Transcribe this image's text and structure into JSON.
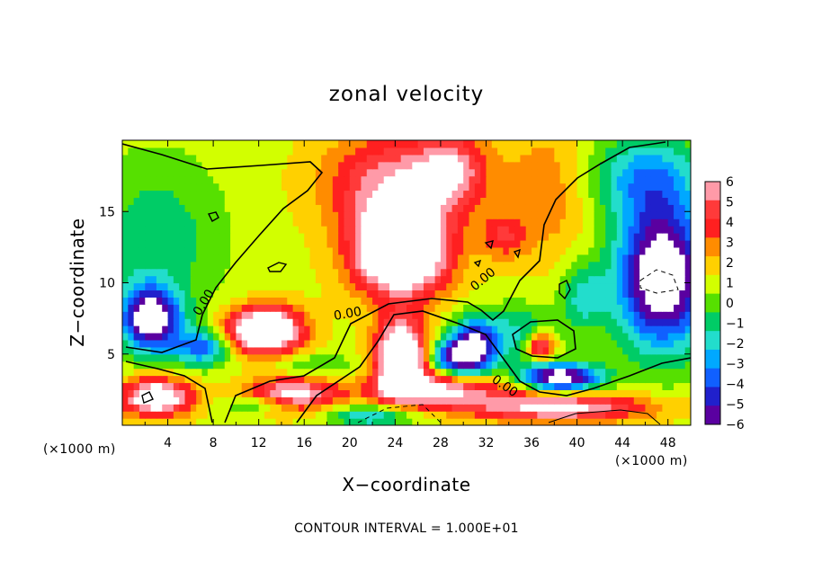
{
  "chart_data": {
    "type": "heatmap",
    "title": "zonal velocity",
    "xlabel": "X−coordinate",
    "ylabel": "Z−coordinate",
    "x_unit_label": "(×1000 m)",
    "z_unit_label": "(×1000 m)",
    "x_range": [
      0,
      50
    ],
    "z_range": [
      0,
      20
    ],
    "x_ticks": [
      4,
      8,
      12,
      16,
      20,
      24,
      28,
      32,
      36,
      40,
      44,
      48
    ],
    "x_tick_labels": [
      "4",
      "8",
      "12",
      "16",
      "20",
      "24",
      "28",
      "32",
      "36",
      "40",
      "44",
      "48"
    ],
    "z_ticks": [
      5,
      10,
      15
    ],
    "z_tick_labels": [
      "5",
      "10",
      "15"
    ],
    "colorbar": {
      "levels": [
        6,
        5,
        4,
        3,
        2,
        1,
        0,
        -1,
        -2,
        -3,
        -4,
        -5,
        -6
      ],
      "labels": [
        "6",
        "5",
        "4",
        "3",
        "2",
        "1",
        "0",
        "−1",
        "−2",
        "−3",
        "−4",
        "−5",
        "−6"
      ],
      "colors": [
        "#ff9aa8",
        "#ff3a3a",
        "#ff2020",
        "#ff8c00",
        "#ffd000",
        "#d2ff00",
        "#56e000",
        "#00cc66",
        "#22ddcc",
        "#00a8ff",
        "#1060ff",
        "#2020cc",
        "#5a00a0"
      ]
    },
    "contour_interval_label": "CONTOUR INTERVAL = 1.000E+01",
    "contour_labels": [
      "0.00",
      "0.00",
      "0.00",
      "0.00"
    ],
    "features": [
      {
        "x": 24.5,
        "z": 12.2,
        "sx": 4.0,
        "sz": 3.0,
        "amp": 11
      },
      {
        "x": 24.0,
        "z": 17.0,
        "sx": 6.0,
        "sz": 3.5,
        "amp": 5
      },
      {
        "x": 29.0,
        "z": 18.0,
        "sx": 3.0,
        "sz": 2.5,
        "amp": 4
      },
      {
        "x": 12.5,
        "z": 6.7,
        "sx": 3.2,
        "sz": 1.6,
        "amp": 10
      },
      {
        "x": 24.5,
        "z": 4.8,
        "sx": 2.2,
        "sz": 2.5,
        "amp": 10
      },
      {
        "x": 3.0,
        "z": 2.0,
        "sx": 3.0,
        "sz": 1.3,
        "amp": 8
      },
      {
        "x": 15.0,
        "z": 2.2,
        "sx": 4.0,
        "sz": 1.2,
        "amp": 6
      },
      {
        "x": 28.0,
        "z": 2.5,
        "sx": 6.0,
        "sz": 1.2,
        "amp": 6
      },
      {
        "x": 38.5,
        "z": 1.3,
        "sx": 8.0,
        "sz": 1.0,
        "amp": 6
      },
      {
        "x": 36.8,
        "z": 5.6,
        "sx": 1.2,
        "sz": 1.0,
        "amp": 6
      },
      {
        "x": 33.5,
        "z": 13.3,
        "sx": 2.0,
        "sz": 1.5,
        "amp": 3
      },
      {
        "x": 37.5,
        "z": 16.5,
        "sx": 4.0,
        "sz": 5.0,
        "amp": 2
      },
      {
        "x": 3.0,
        "z": 13.0,
        "sx": 6.0,
        "sz": 6.0,
        "amp": -2.4
      },
      {
        "x": 2.5,
        "z": 7.5,
        "sx": 2.5,
        "sz": 2.2,
        "amp": -9
      },
      {
        "x": 7.0,
        "z": 5.5,
        "sx": 2.5,
        "sz": 1.3,
        "amp": -5
      },
      {
        "x": 47.5,
        "z": 10.5,
        "sx": 4.0,
        "sz": 5.0,
        "amp": -10
      },
      {
        "x": 46.0,
        "z": 17.5,
        "sx": 5.0,
        "sz": 3.0,
        "amp": -4
      },
      {
        "x": 38.5,
        "z": 3.4,
        "sx": 3.5,
        "sz": 1.0,
        "amp": -9
      },
      {
        "x": 31.0,
        "z": 5.5,
        "sx": 2.0,
        "sz": 2.0,
        "amp": -8
      },
      {
        "x": 29.0,
        "z": 4.8,
        "sx": 2.0,
        "sz": 1.2,
        "amp": -6
      },
      {
        "x": 35.0,
        "z": 6.5,
        "sx": 3.0,
        "sz": 2.0,
        "amp": -3
      },
      {
        "x": 22.0,
        "z": 0.7,
        "sx": 4.0,
        "sz": 0.8,
        "amp": -4
      },
      {
        "x": 12.0,
        "z": 1.5,
        "sx": 3.0,
        "sz": 0.6,
        "amp": -3
      },
      {
        "x": 17.0,
        "z": 4.2,
        "sx": 4.0,
        "sz": 0.8,
        "amp": -2
      },
      {
        "x": 40.5,
        "z": 9.0,
        "sx": 2.0,
        "sz": 2.5,
        "amp": -3
      }
    ]
  }
}
